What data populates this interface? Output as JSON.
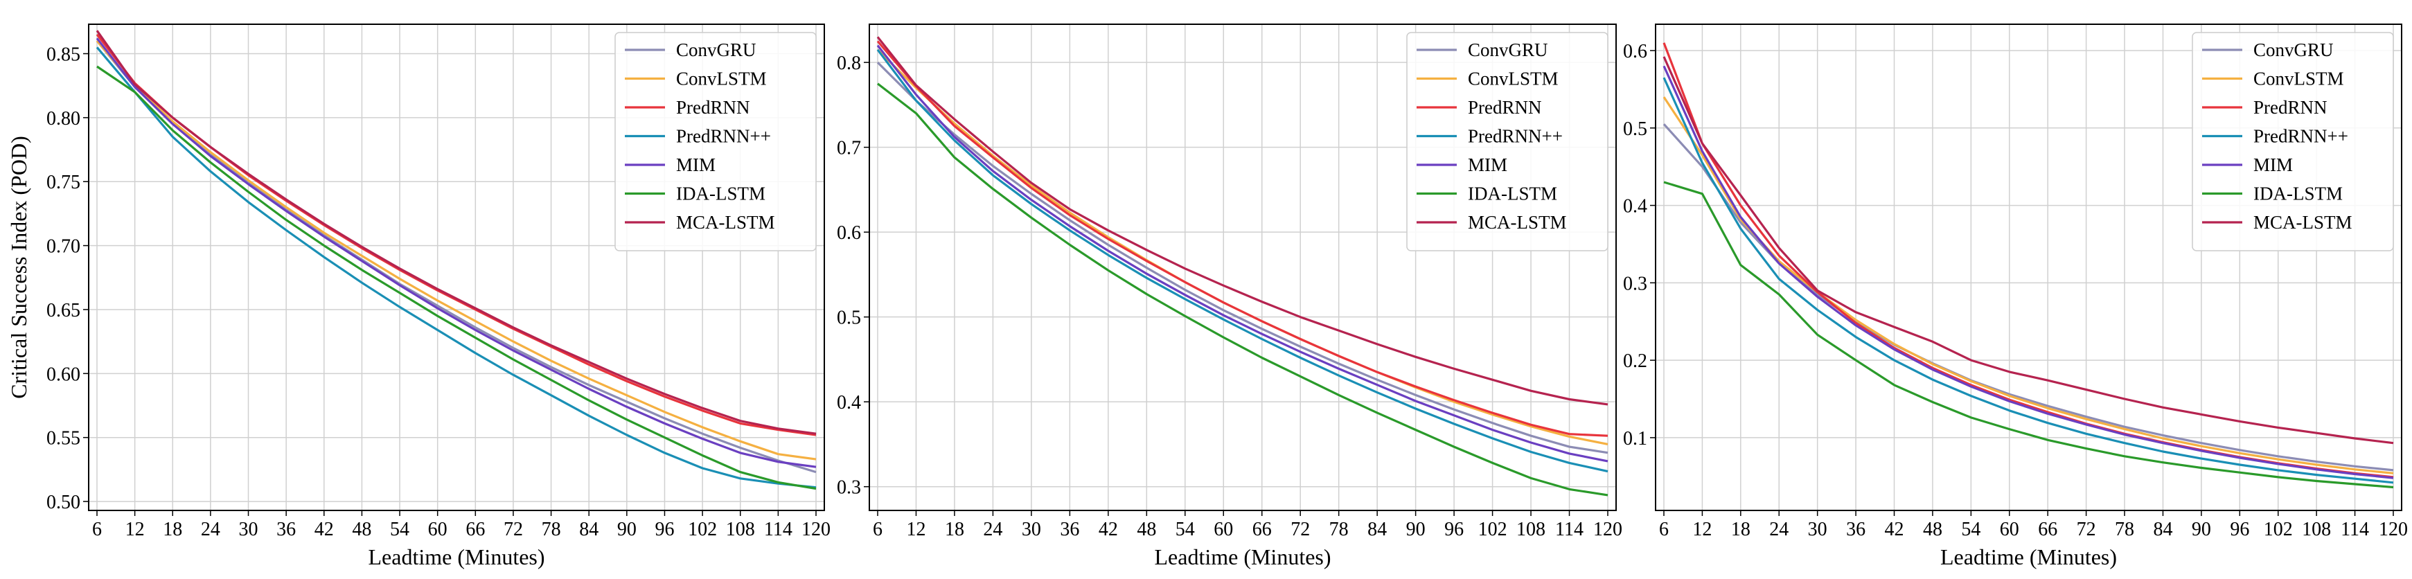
{
  "colors": {
    "ConvGRU": "#8c8cb4",
    "ConvLSTM": "#f5b041",
    "PredRNN": "#e8343c",
    "PredRNN++": "#1a8fb5",
    "MIM": "#6a3fc1",
    "IDA-LSTM": "#2a9a2a",
    "MCA-LSTM": "#b5234f",
    "grid": "#d0d0d0"
  },
  "chart_data": [
    {
      "type": "line",
      "xlabel": "Leadtime (Minutes)",
      "ylabel": "Critical Success Index (POD)",
      "x": [
        6,
        12,
        18,
        24,
        30,
        36,
        42,
        48,
        54,
        60,
        66,
        72,
        78,
        84,
        90,
        96,
        102,
        108,
        114,
        120
      ],
      "xticks": [
        "6",
        "12",
        "18",
        "24",
        "30",
        "36",
        "42",
        "48",
        "54",
        "60",
        "66",
        "72",
        "78",
        "84",
        "90",
        "96",
        "102",
        "108",
        "114",
        "120"
      ],
      "ylim": [
        0.493,
        0.873
      ],
      "yticks": [
        0.5,
        0.55,
        0.6,
        0.65,
        0.7,
        0.75,
        0.8,
        0.85
      ],
      "ytick_labels": [
        "0.50",
        "0.55",
        "0.60",
        "0.65",
        "0.70",
        "0.75",
        "0.80",
        "0.85"
      ],
      "legend_position": "top-right",
      "series": [
        {
          "name": "ConvGRU",
          "values": [
            0.86,
            0.824,
            0.796,
            0.772,
            0.749,
            0.728,
            0.708,
            0.689,
            0.67,
            0.653,
            0.636,
            0.62,
            0.605,
            0.591,
            0.578,
            0.565,
            0.553,
            0.542,
            0.532,
            0.523
          ]
        },
        {
          "name": "ConvLSTM",
          "values": [
            0.86,
            0.825,
            0.797,
            0.773,
            0.751,
            0.73,
            0.71,
            0.692,
            0.674,
            0.657,
            0.641,
            0.625,
            0.61,
            0.596,
            0.583,
            0.57,
            0.558,
            0.547,
            0.537,
            0.533
          ]
        },
        {
          "name": "PredRNN",
          "values": [
            0.865,
            0.827,
            0.8,
            0.777,
            0.755,
            0.735,
            0.716,
            0.698,
            0.681,
            0.665,
            0.65,
            0.635,
            0.621,
            0.607,
            0.594,
            0.582,
            0.571,
            0.561,
            0.556,
            0.552
          ]
        },
        {
          "name": "PredRNN++",
          "values": [
            0.855,
            0.82,
            0.785,
            0.758,
            0.734,
            0.712,
            0.691,
            0.671,
            0.652,
            0.634,
            0.616,
            0.599,
            0.583,
            0.567,
            0.552,
            0.538,
            0.526,
            0.518,
            0.514,
            0.511
          ]
        },
        {
          "name": "MIM",
          "values": [
            0.862,
            0.824,
            0.795,
            0.77,
            0.748,
            0.727,
            0.707,
            0.688,
            0.669,
            0.651,
            0.634,
            0.618,
            0.603,
            0.588,
            0.574,
            0.561,
            0.549,
            0.538,
            0.531,
            0.527
          ]
        },
        {
          "name": "IDA-LSTM",
          "values": [
            0.84,
            0.82,
            0.79,
            0.765,
            0.742,
            0.72,
            0.7,
            0.681,
            0.663,
            0.645,
            0.628,
            0.611,
            0.595,
            0.579,
            0.564,
            0.55,
            0.536,
            0.523,
            0.515,
            0.51
          ]
        },
        {
          "name": "MCA-LSTM",
          "values": [
            0.868,
            0.826,
            0.8,
            0.777,
            0.756,
            0.736,
            0.717,
            0.699,
            0.682,
            0.666,
            0.651,
            0.636,
            0.622,
            0.609,
            0.596,
            0.584,
            0.573,
            0.563,
            0.557,
            0.553
          ]
        }
      ]
    },
    {
      "type": "line",
      "xlabel": "Leadtime (Minutes)",
      "ylabel": "",
      "x": [
        6,
        12,
        18,
        24,
        30,
        36,
        42,
        48,
        54,
        60,
        66,
        72,
        78,
        84,
        90,
        96,
        102,
        108,
        114,
        120
      ],
      "xticks": [
        "6",
        "12",
        "18",
        "24",
        "30",
        "36",
        "42",
        "48",
        "54",
        "60",
        "66",
        "72",
        "78",
        "84",
        "90",
        "96",
        "102",
        "108",
        "114",
        "120"
      ],
      "ylim": [
        0.272,
        0.845
      ],
      "yticks": [
        0.3,
        0.4,
        0.5,
        0.6,
        0.7,
        0.8
      ],
      "ytick_labels": [
        "0.3",
        "0.4",
        "0.5",
        "0.6",
        "0.7",
        "0.8"
      ],
      "legend_position": "top-right",
      "series": [
        {
          "name": "ConvGRU",
          "values": [
            0.8,
            0.755,
            0.715,
            0.678,
            0.645,
            0.614,
            0.585,
            0.558,
            0.532,
            0.508,
            0.486,
            0.465,
            0.445,
            0.426,
            0.408,
            0.391,
            0.375,
            0.36,
            0.347,
            0.34
          ]
        },
        {
          "name": "ConvLSTM",
          "values": [
            0.815,
            0.77,
            0.728,
            0.69,
            0.655,
            0.623,
            0.594,
            0.567,
            0.541,
            0.517,
            0.495,
            0.474,
            0.454,
            0.435,
            0.417,
            0.4,
            0.385,
            0.371,
            0.359,
            0.35
          ]
        },
        {
          "name": "PredRNN",
          "values": [
            0.825,
            0.772,
            0.725,
            0.688,
            0.652,
            0.62,
            0.592,
            0.566,
            0.541,
            0.517,
            0.495,
            0.474,
            0.454,
            0.435,
            0.418,
            0.402,
            0.387,
            0.373,
            0.362,
            0.36
          ]
        },
        {
          "name": "PredRNN++",
          "values": [
            0.815,
            0.755,
            0.708,
            0.667,
            0.633,
            0.602,
            0.573,
            0.546,
            0.521,
            0.497,
            0.474,
            0.452,
            0.431,
            0.411,
            0.392,
            0.374,
            0.357,
            0.341,
            0.328,
            0.318
          ]
        },
        {
          "name": "MIM",
          "values": [
            0.82,
            0.762,
            0.712,
            0.672,
            0.638,
            0.607,
            0.578,
            0.551,
            0.526,
            0.502,
            0.48,
            0.459,
            0.439,
            0.42,
            0.401,
            0.384,
            0.367,
            0.352,
            0.339,
            0.33
          ]
        },
        {
          "name": "IDA-LSTM",
          "values": [
            0.775,
            0.74,
            0.688,
            0.651,
            0.617,
            0.585,
            0.555,
            0.527,
            0.501,
            0.476,
            0.452,
            0.43,
            0.408,
            0.387,
            0.367,
            0.347,
            0.328,
            0.31,
            0.297,
            0.29
          ]
        },
        {
          "name": "MCA-LSTM",
          "values": [
            0.83,
            0.773,
            0.733,
            0.695,
            0.658,
            0.627,
            0.602,
            0.579,
            0.557,
            0.537,
            0.518,
            0.5,
            0.484,
            0.468,
            0.453,
            0.439,
            0.426,
            0.413,
            0.403,
            0.397
          ]
        }
      ]
    },
    {
      "type": "line",
      "xlabel": "Leadtime (Minutes)",
      "ylabel": "",
      "x": [
        6,
        12,
        18,
        24,
        30,
        36,
        42,
        48,
        54,
        60,
        66,
        72,
        78,
        84,
        90,
        96,
        102,
        108,
        114,
        120
      ],
      "xticks": [
        "6",
        "12",
        "18",
        "24",
        "30",
        "36",
        "42",
        "48",
        "54",
        "60",
        "66",
        "72",
        "78",
        "84",
        "90",
        "96",
        "102",
        "108",
        "114",
        "120"
      ],
      "ylim": [
        0.006,
        0.634
      ],
      "yticks": [
        0.1,
        0.2,
        0.3,
        0.4,
        0.5,
        0.6
      ],
      "ytick_labels": [
        "0.1",
        "0.2",
        "0.3",
        "0.4",
        "0.5",
        "0.6"
      ],
      "legend_position": "top-right",
      "series": [
        {
          "name": "ConvGRU",
          "values": [
            0.505,
            0.45,
            0.378,
            0.325,
            0.285,
            0.25,
            0.22,
            0.196,
            0.174,
            0.156,
            0.141,
            0.127,
            0.114,
            0.103,
            0.093,
            0.084,
            0.076,
            0.069,
            0.063,
            0.058
          ]
        },
        {
          "name": "ConvLSTM",
          "values": [
            0.54,
            0.465,
            0.382,
            0.328,
            0.288,
            0.252,
            0.221,
            0.195,
            0.173,
            0.154,
            0.138,
            0.124,
            0.111,
            0.099,
            0.089,
            0.08,
            0.072,
            0.065,
            0.059,
            0.054
          ]
        },
        {
          "name": "PredRNN",
          "values": [
            0.61,
            0.48,
            0.4,
            0.335,
            0.288,
            0.248,
            0.216,
            0.19,
            0.168,
            0.149,
            0.133,
            0.118,
            0.105,
            0.094,
            0.084,
            0.075,
            0.067,
            0.06,
            0.054,
            0.049
          ]
        },
        {
          "name": "PredRNN++",
          "values": [
            0.565,
            0.455,
            0.37,
            0.305,
            0.265,
            0.23,
            0.2,
            0.175,
            0.154,
            0.135,
            0.119,
            0.105,
            0.093,
            0.082,
            0.073,
            0.065,
            0.058,
            0.052,
            0.047,
            0.042
          ]
        },
        {
          "name": "MIM",
          "values": [
            0.58,
            0.47,
            0.385,
            0.325,
            0.282,
            0.245,
            0.214,
            0.188,
            0.166,
            0.147,
            0.131,
            0.117,
            0.104,
            0.093,
            0.083,
            0.074,
            0.066,
            0.059,
            0.053,
            0.048
          ]
        },
        {
          "name": "IDA-LSTM",
          "values": [
            0.43,
            0.415,
            0.323,
            0.285,
            0.233,
            0.2,
            0.168,
            0.146,
            0.126,
            0.111,
            0.097,
            0.086,
            0.076,
            0.068,
            0.061,
            0.055,
            0.049,
            0.044,
            0.04,
            0.036
          ]
        },
        {
          "name": "MCA-LSTM",
          "values": [
            0.592,
            0.48,
            0.413,
            0.345,
            0.29,
            0.262,
            0.243,
            0.224,
            0.2,
            0.185,
            0.174,
            0.162,
            0.15,
            0.139,
            0.13,
            0.121,
            0.113,
            0.106,
            0.099,
            0.093
          ]
        }
      ]
    }
  ]
}
